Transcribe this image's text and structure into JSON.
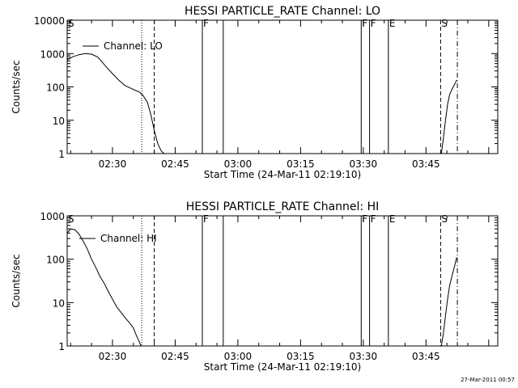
{
  "footer": {
    "timestamp": "27-Mar-2011 00:57"
  },
  "chart_data": [
    {
      "type": "line",
      "title": "HESSI PARTICLE_RATE Channel: LO",
      "xlabel": "Start Time (24-Mar-11 02:19:10)",
      "ylabel": "Counts/sec",
      "yscale": "log",
      "ylim": [
        1,
        10000
      ],
      "xlim_minutes_after_start": [
        0,
        103
      ],
      "x_tick_labels": [
        "02:30",
        "02:45",
        "03:00",
        "03:15",
        "03:30",
        "03:45"
      ],
      "y_tick_labels": [
        "1",
        "10",
        "100",
        "1000",
        "10000"
      ],
      "legend": [
        "Channel: LO"
      ],
      "series": [
        {
          "name": "Channel: LO",
          "segments": [
            {
              "x": [
                "02:19:10",
                "02:20:30",
                "02:22:00",
                "02:23:30",
                "02:25:00",
                "02:26:30",
                "02:27:30",
                "02:28:30",
                "02:30:00",
                "02:31:30",
                "02:33:00",
                "02:34:30",
                "02:35:30",
                "02:36:20",
                "02:37:20",
                "02:38:20",
                "02:39:10",
                "02:40:00",
                "02:40:50",
                "02:41:40",
                "02:42:20"
              ],
              "y": [
                650,
                800,
                920,
                1000,
                960,
                780,
                560,
                400,
                250,
                160,
                110,
                90,
                78,
                72,
                55,
                35,
                15,
                5,
                2,
                1.2,
                1
              ]
            },
            {
              "x": [
                "03:48:40",
                "03:49:10",
                "03:49:40",
                "03:50:10",
                "03:50:40",
                "03:51:20",
                "03:52:00",
                "03:52:20"
              ],
              "y": [
                1,
                3,
                10,
                30,
                60,
                90,
                130,
                160
              ]
            }
          ]
        }
      ],
      "markers": [
        {
          "time": "02:19:10",
          "label": "S",
          "style": "none"
        },
        {
          "time": "02:37:00",
          "label": "",
          "style": "dotted"
        },
        {
          "time": "02:40:00",
          "label": "",
          "style": "dashed"
        },
        {
          "time": "02:51:30",
          "label": "F",
          "style": "solid"
        },
        {
          "time": "02:56:30",
          "label": "",
          "style": "solid"
        },
        {
          "time": "03:29:30",
          "label": "F",
          "style": "solid"
        },
        {
          "time": "03:31:30",
          "label": "F",
          "style": "solid"
        },
        {
          "time": "03:36:00",
          "label": "E",
          "style": "solid"
        },
        {
          "time": "03:48:30",
          "label": "S",
          "style": "dashed"
        },
        {
          "time": "03:52:30",
          "label": "",
          "style": "dashdot"
        }
      ]
    },
    {
      "type": "line",
      "title": "HESSI PARTICLE_RATE Channel: HI",
      "xlabel": "Start Time (24-Mar-11 02:19:10)",
      "ylabel": "Counts/sec",
      "yscale": "log",
      "ylim": [
        1,
        1000
      ],
      "xlim_minutes_after_start": [
        0,
        103
      ],
      "x_tick_labels": [
        "02:30",
        "02:45",
        "03:00",
        "03:15",
        "03:30",
        "03:45"
      ],
      "y_tick_labels": [
        "1",
        "10",
        "100",
        "1000"
      ],
      "legend": [
        "Channel: HI"
      ],
      "series": [
        {
          "name": "Channel: HI",
          "segments": [
            {
              "x": [
                "02:19:10",
                "02:20:00",
                "02:21:00",
                "02:22:00",
                "02:23:00",
                "02:24:00",
                "02:25:00",
                "02:26:00",
                "02:27:00",
                "02:28:00",
                "02:29:00",
                "02:30:00",
                "02:31:00",
                "02:32:00",
                "02:33:00",
                "02:34:00",
                "02:35:00",
                "02:35:40",
                "02:36:20",
                "02:36:50"
              ],
              "y": [
                400,
                500,
                480,
                380,
                260,
                170,
                100,
                65,
                40,
                28,
                18,
                12,
                8,
                6,
                4.5,
                3.5,
                2.6,
                1.8,
                1.3,
                1
              ]
            },
            {
              "x": [
                "03:48:40",
                "03:49:10",
                "03:49:40",
                "03:50:10",
                "03:50:40",
                "03:51:20",
                "03:52:00",
                "03:52:20"
              ],
              "y": [
                1,
                2,
                5,
                12,
                25,
                45,
                80,
                110
              ]
            }
          ]
        }
      ],
      "markers": [
        {
          "time": "02:19:10",
          "label": "S",
          "style": "none"
        },
        {
          "time": "02:37:00",
          "label": "",
          "style": "dotted"
        },
        {
          "time": "02:40:00",
          "label": "",
          "style": "dashed"
        },
        {
          "time": "02:51:30",
          "label": "F",
          "style": "solid"
        },
        {
          "time": "02:56:30",
          "label": "",
          "style": "solid"
        },
        {
          "time": "03:29:30",
          "label": "F",
          "style": "solid"
        },
        {
          "time": "03:31:30",
          "label": "F",
          "style": "solid"
        },
        {
          "time": "03:36:00",
          "label": "E",
          "style": "solid"
        },
        {
          "time": "03:48:30",
          "label": "S",
          "style": "dashed"
        },
        {
          "time": "03:52:30",
          "label": "",
          "style": "dashdot"
        }
      ]
    }
  ]
}
